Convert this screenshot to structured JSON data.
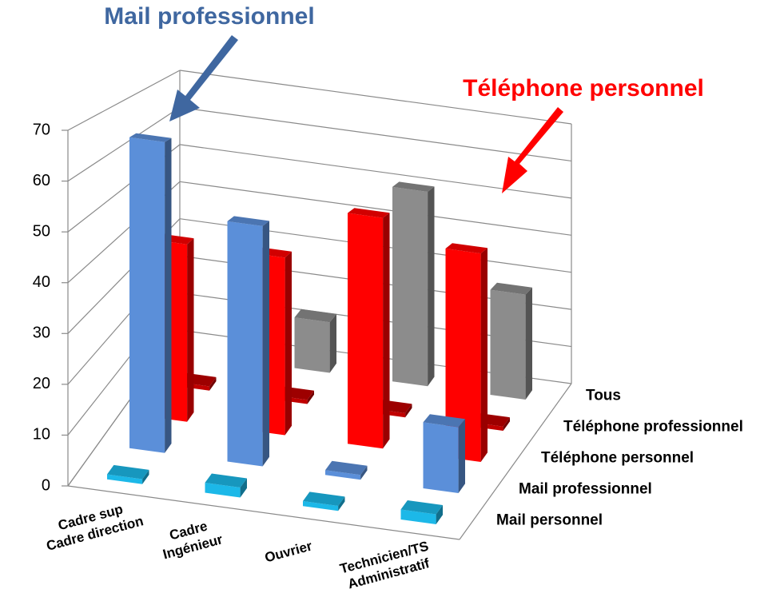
{
  "chart_data": {
    "type": "bar3d",
    "categories": [
      [
        "Cadre sup",
        "Cadre direction"
      ],
      [
        "Cadre",
        "Ingénieur"
      ],
      [
        "Ouvrier"
      ],
      [
        "Technicien/TS",
        "Administratif"
      ]
    ],
    "series": [
      {
        "name": "Mail personnel",
        "color": "#1cb8e8",
        "values": [
          1,
          2,
          1,
          2
        ]
      },
      {
        "name": "Mail professionnel",
        "color": "#5b8fd9",
        "values": [
          66,
          51,
          1,
          14
        ]
      },
      {
        "name": "Téléphone personnel",
        "color": "#ff0000",
        "values": [
          40,
          40,
          52,
          47
        ]
      },
      {
        "name": "Téléphone professionnel",
        "color": "#c00000",
        "values": [
          1,
          1,
          1,
          1
        ]
      },
      {
        "name": "Tous",
        "color": "#8c8c8c",
        "values": [
          null,
          13,
          50,
          27
        ]
      }
    ],
    "ylim": [
      0,
      70
    ],
    "yticks": [
      0,
      10,
      20,
      30,
      40,
      50,
      60,
      70
    ],
    "grid": true,
    "annotations": [
      {
        "text": "Mail professionnel",
        "color": "#3f67a0"
      },
      {
        "text": "Téléphone personnel",
        "color": "#ff0000"
      }
    ]
  }
}
